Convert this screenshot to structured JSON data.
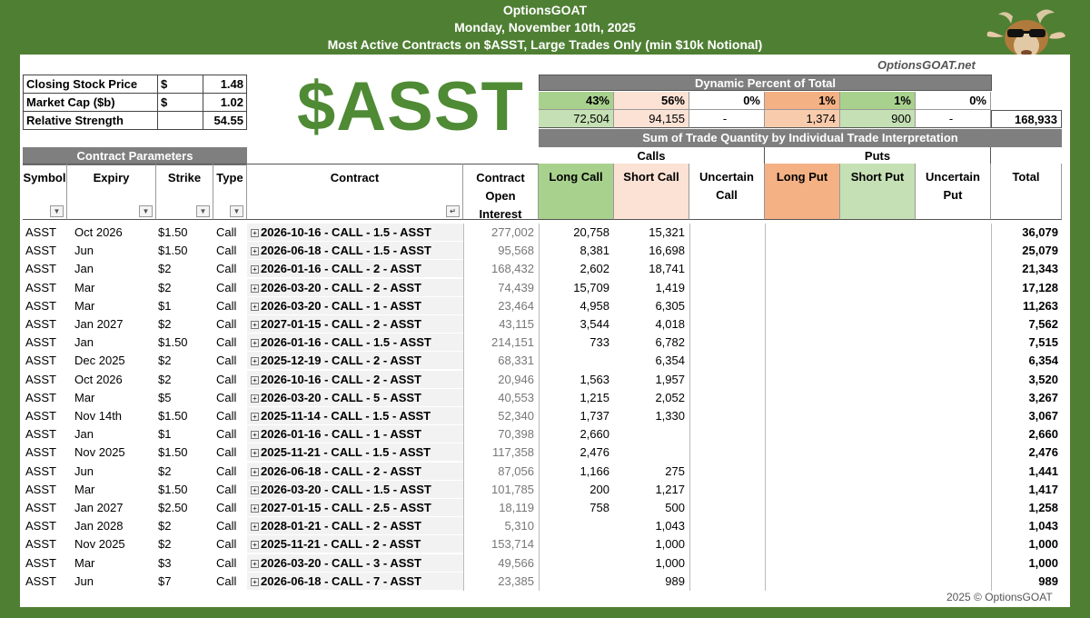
{
  "header": {
    "brand": "OptionsGOAT",
    "date": "Monday, November 10th, 2025",
    "subtitle": "Most Active Contracts on $ASST, Large Trades Only (min $10k Notional)"
  },
  "site": "OptionsGOAT.net",
  "ticker": "$ASST",
  "stock_info": [
    {
      "label": "Closing Stock Price",
      "sym": "$",
      "value": "1.48"
    },
    {
      "label": "Market Cap ($b)",
      "sym": "$",
      "value": "1.02"
    },
    {
      "label": "Relative Strength",
      "sym": "",
      "value": "54.55"
    }
  ],
  "dynamic": {
    "title": "Dynamic Percent of Total",
    "percents": [
      "43%",
      "56%",
      "0%",
      "1%",
      "1%",
      "0%"
    ],
    "totals": [
      "72,504",
      "94,155",
      "-",
      "1,374",
      "900",
      "-"
    ],
    "grand_total": "168,933"
  },
  "sum_title": "Sum of Trade Quantity by Individual Trade Interpretation",
  "contract_params_title": "Contract Parameters",
  "groups": {
    "calls": "Calls",
    "puts": "Puts"
  },
  "columns": {
    "symbol": "Symbol",
    "expiry": "Expiry",
    "strike": "Strike",
    "type": "Type",
    "contract": "Contract",
    "oi": "Contract Open Interest",
    "long_call": "Long Call",
    "short_call": "Short Call",
    "uncertain_call": "Uncertain Call",
    "long_put": "Long Put",
    "short_put": "Short Put",
    "uncertain_put": "Uncertain Put",
    "total": "Total"
  },
  "colors": {
    "green_frame": "#4f7f33",
    "long_call": "#a9d18e",
    "short_call": "#fbe2d5",
    "long_put": "#f4b183",
    "short_put": "#c5e0b4"
  },
  "rows": [
    {
      "symbol": "ASST",
      "expiry": "Oct 2026",
      "strike": "$1.50",
      "type": "Call",
      "contract": "2026-10-16 - CALL - 1.5 - ASST",
      "oi": "277,002",
      "long_call": "20,758",
      "short_call": "15,321",
      "total": "36,079"
    },
    {
      "symbol": "ASST",
      "expiry": "Jun",
      "strike": "$1.50",
      "type": "Call",
      "contract": "2026-06-18 - CALL - 1.5 - ASST",
      "oi": "95,568",
      "long_call": "8,381",
      "short_call": "16,698",
      "total": "25,079"
    },
    {
      "symbol": "ASST",
      "expiry": "Jan",
      "strike": "$2",
      "type": "Call",
      "contract": "2026-01-16 - CALL - 2 - ASST",
      "oi": "168,432",
      "long_call": "2,602",
      "short_call": "18,741",
      "total": "21,343"
    },
    {
      "symbol": "ASST",
      "expiry": "Mar",
      "strike": "$2",
      "type": "Call",
      "contract": "2026-03-20 - CALL - 2 - ASST",
      "oi": "74,439",
      "long_call": "15,709",
      "short_call": "1,419",
      "total": "17,128"
    },
    {
      "symbol": "ASST",
      "expiry": "Mar",
      "strike": "$1",
      "type": "Call",
      "contract": "2026-03-20 - CALL - 1 - ASST",
      "oi": "23,464",
      "long_call": "4,958",
      "short_call": "6,305",
      "total": "11,263"
    },
    {
      "symbol": "ASST",
      "expiry": "Jan 2027",
      "strike": "$2",
      "type": "Call",
      "contract": "2027-01-15 - CALL - 2 - ASST",
      "oi": "43,115",
      "long_call": "3,544",
      "short_call": "4,018",
      "total": "7,562"
    },
    {
      "symbol": "ASST",
      "expiry": "Jan",
      "strike": "$1.50",
      "type": "Call",
      "contract": "2026-01-16 - CALL - 1.5 - ASST",
      "oi": "214,151",
      "long_call": "733",
      "short_call": "6,782",
      "total": "7,515"
    },
    {
      "symbol": "ASST",
      "expiry": "Dec 2025",
      "strike": "$2",
      "type": "Call",
      "contract": "2025-12-19 - CALL - 2 - ASST",
      "oi": "68,331",
      "long_call": "",
      "short_call": "6,354",
      "total": "6,354"
    },
    {
      "symbol": "ASST",
      "expiry": "Oct 2026",
      "strike": "$2",
      "type": "Call",
      "contract": "2026-10-16 - CALL - 2 - ASST",
      "oi": "20,946",
      "long_call": "1,563",
      "short_call": "1,957",
      "total": "3,520"
    },
    {
      "symbol": "ASST",
      "expiry": "Mar",
      "strike": "$5",
      "type": "Call",
      "contract": "2026-03-20 - CALL - 5 - ASST",
      "oi": "40,553",
      "long_call": "1,215",
      "short_call": "2,052",
      "total": "3,267"
    },
    {
      "symbol": "ASST",
      "expiry": "Nov 14th",
      "strike": "$1.50",
      "type": "Call",
      "contract": "2025-11-14 - CALL - 1.5 - ASST",
      "oi": "52,340",
      "long_call": "1,737",
      "short_call": "1,330",
      "total": "3,067"
    },
    {
      "symbol": "ASST",
      "expiry": "Jan",
      "strike": "$1",
      "type": "Call",
      "contract": "2026-01-16 - CALL - 1 - ASST",
      "oi": "70,398",
      "long_call": "2,660",
      "short_call": "",
      "total": "2,660"
    },
    {
      "symbol": "ASST",
      "expiry": "Nov 2025",
      "strike": "$1.50",
      "type": "Call",
      "contract": "2025-11-21 - CALL - 1.5 - ASST",
      "oi": "117,358",
      "long_call": "2,476",
      "short_call": "",
      "total": "2,476"
    },
    {
      "symbol": "ASST",
      "expiry": "Jun",
      "strike": "$2",
      "type": "Call",
      "contract": "2026-06-18 - CALL - 2 - ASST",
      "oi": "87,056",
      "long_call": "1,166",
      "short_call": "275",
      "total": "1,441"
    },
    {
      "symbol": "ASST",
      "expiry": "Mar",
      "strike": "$1.50",
      "type": "Call",
      "contract": "2026-03-20 - CALL - 1.5 - ASST",
      "oi": "101,785",
      "long_call": "200",
      "short_call": "1,217",
      "total": "1,417"
    },
    {
      "symbol": "ASST",
      "expiry": "Jan 2027",
      "strike": "$2.50",
      "type": "Call",
      "contract": "2027-01-15 - CALL - 2.5 - ASST",
      "oi": "18,119",
      "long_call": "758",
      "short_call": "500",
      "total": "1,258"
    },
    {
      "symbol": "ASST",
      "expiry": "Jan 2028",
      "strike": "$2",
      "type": "Call",
      "contract": "2028-01-21 - CALL - 2 - ASST",
      "oi": "5,310",
      "long_call": "",
      "short_call": "1,043",
      "total": "1,043"
    },
    {
      "symbol": "ASST",
      "expiry": "Nov 2025",
      "strike": "$2",
      "type": "Call",
      "contract": "2025-11-21 - CALL - 2 - ASST",
      "oi": "153,714",
      "long_call": "",
      "short_call": "1,000",
      "total": "1,000"
    },
    {
      "symbol": "ASST",
      "expiry": "Mar",
      "strike": "$3",
      "type": "Call",
      "contract": "2026-03-20 - CALL - 3 - ASST",
      "oi": "49,566",
      "long_call": "",
      "short_call": "1,000",
      "total": "1,000"
    },
    {
      "symbol": "ASST",
      "expiry": "Jun",
      "strike": "$7",
      "type": "Call",
      "contract": "2026-06-18 - CALL - 7 - ASST",
      "oi": "23,385",
      "long_call": "",
      "short_call": "989",
      "total": "989"
    }
  ],
  "copyright": "2025 © OptionsGOAT"
}
